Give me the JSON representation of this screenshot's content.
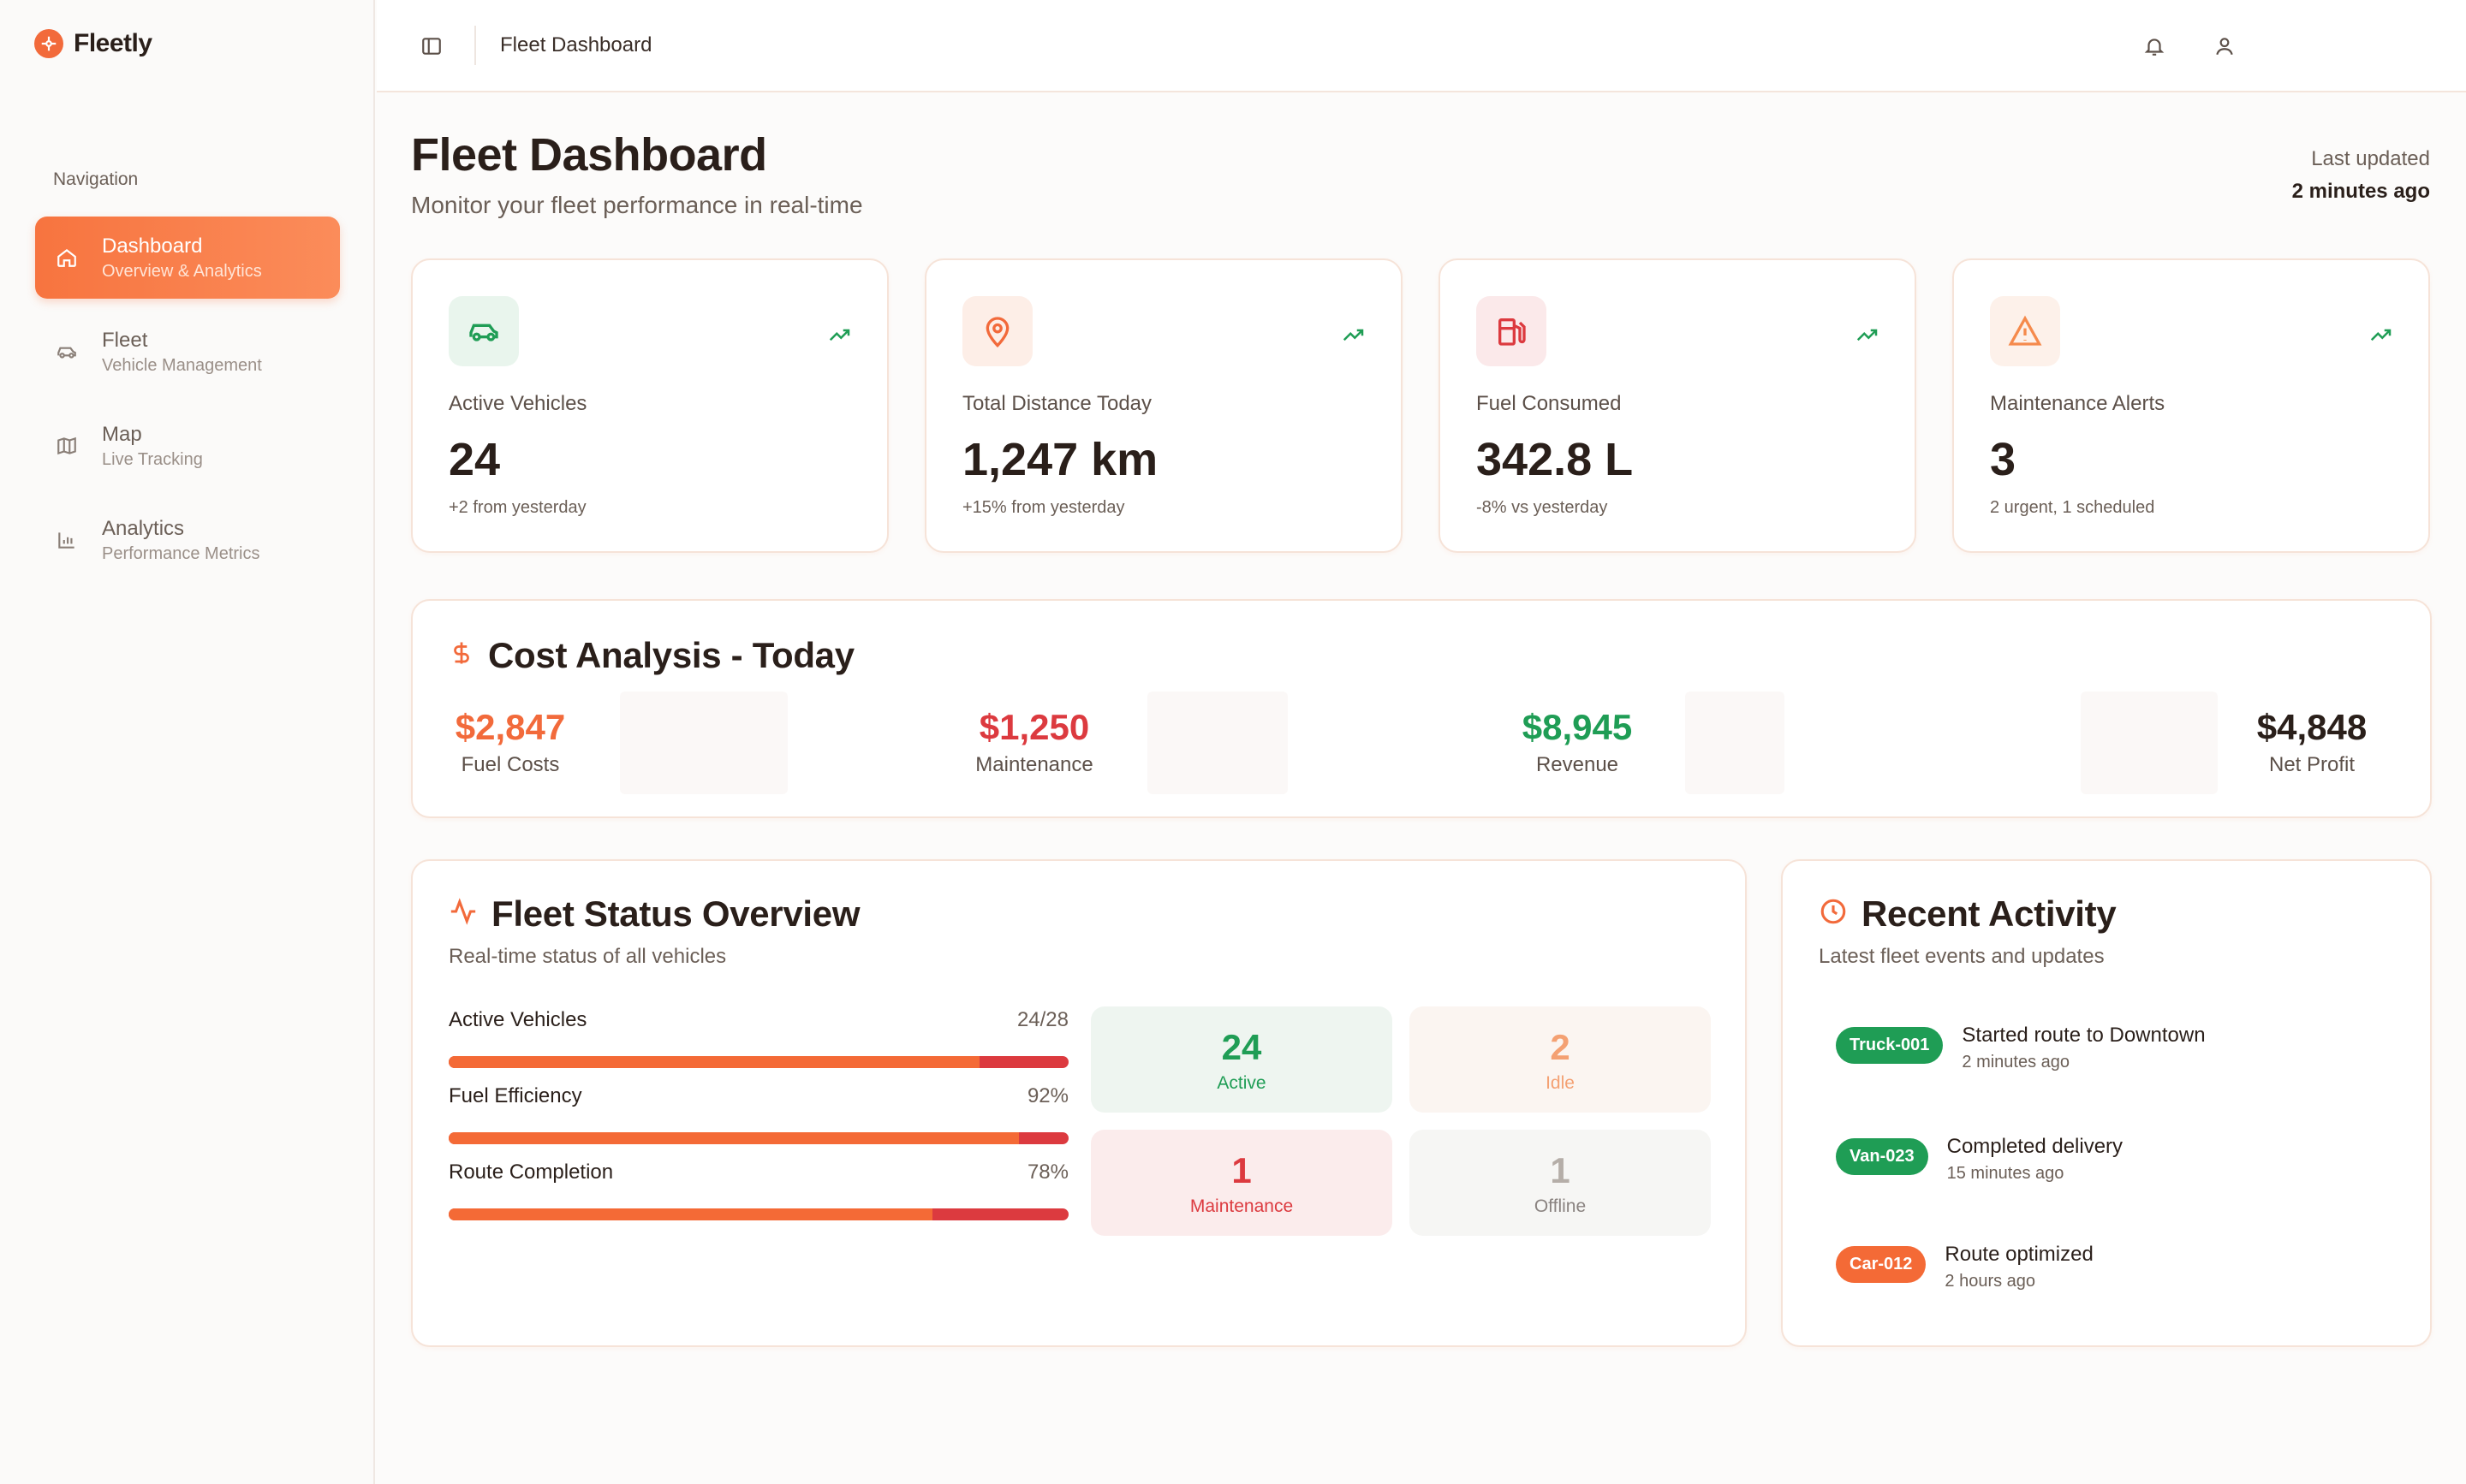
{
  "app": {
    "name": "Fleetly"
  },
  "sidebar": {
    "heading": "Navigation",
    "items": [
      {
        "label": "Dashboard",
        "sub": "Overview & Analytics",
        "icon": "home-icon",
        "active": true
      },
      {
        "label": "Fleet",
        "sub": "Vehicle Management",
        "icon": "car-icon"
      },
      {
        "label": "Map",
        "sub": "Live Tracking",
        "icon": "map-icon"
      },
      {
        "label": "Analytics",
        "sub": "Performance Metrics",
        "icon": "bar-chart-icon"
      }
    ]
  },
  "topbar": {
    "title": "Fleet Dashboard"
  },
  "header": {
    "title": "Fleet Dashboard",
    "subtitle": "Monitor your fleet performance in real-time",
    "last_updated_label": "Last updated",
    "last_updated_value": "2 minutes ago"
  },
  "stats": [
    {
      "label": "Active Vehicles",
      "value": "24",
      "note": "+2 from yesterday",
      "icon": "car-icon",
      "color": "#1f9d55"
    },
    {
      "label": "Total Distance Today",
      "value": "1,247 km",
      "note": "+15% from yesterday",
      "icon": "map-pin-icon",
      "color": "#f26a3b"
    },
    {
      "label": "Fuel Consumed",
      "value": "342.8 L",
      "note": "-8% vs yesterday",
      "icon": "fuel-icon",
      "color": "#dc3a3f"
    },
    {
      "label": "Maintenance Alerts",
      "value": "3",
      "note": "2 urgent, 1 scheduled",
      "icon": "alert-triangle-icon",
      "color": "#f58a4c"
    }
  ],
  "cost": {
    "title": "Cost Analysis - Today",
    "items": [
      {
        "value": "$2,847",
        "label": "Fuel Costs",
        "color": "#f26a3b"
      },
      {
        "value": "$1,250",
        "label": "Maintenance",
        "color": "#dc3a3f"
      },
      {
        "value": "$8,945",
        "label": "Revenue",
        "color": "#1f9d55"
      },
      {
        "value": "$4,848",
        "label": "Net Profit",
        "color": "#2a1f1a"
      }
    ]
  },
  "fleet_status": {
    "title": "Fleet Status Overview",
    "subtitle": "Real-time status of all vehicles",
    "metrics": [
      {
        "name": "Active Vehicles",
        "value": "24/28",
        "fraction": 0.857
      },
      {
        "name": "Fuel Efficiency",
        "value": "92%",
        "fraction": 0.92
      },
      {
        "name": "Route Completion",
        "value": "78%",
        "fraction": 0.78
      }
    ],
    "tiles": [
      {
        "value": "24",
        "label": "Active",
        "color": "#1f9d55",
        "bg": "#eef5f0"
      },
      {
        "value": "2",
        "label": "Idle",
        "color": "#f4a173",
        "bg": "#fbf5f1"
      },
      {
        "value": "1",
        "label": "Maintenance",
        "color": "#dc3a3f",
        "bg": "#fbecec"
      },
      {
        "value": "1",
        "label": "Offline",
        "color": "#b5aea8",
        "bg": "#f6f6f4"
      }
    ]
  },
  "activity": {
    "title": "Recent Activity",
    "subtitle": "Latest fleet events and updates",
    "items": [
      {
        "badge": "Truck-001",
        "title": "Started route to Downtown",
        "time": "2 minutes ago",
        "color": "#1f9d55"
      },
      {
        "badge": "Van-023",
        "title": "Completed delivery",
        "time": "15 minutes ago",
        "color": "#1f9d55"
      },
      {
        "badge": "Car-012",
        "title": "Route optimized",
        "time": "2 hours ago",
        "color": "#f46a36"
      }
    ]
  }
}
